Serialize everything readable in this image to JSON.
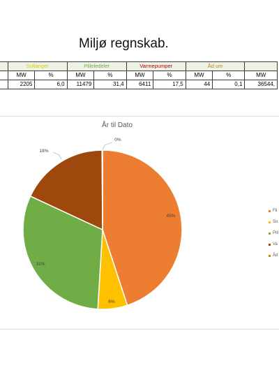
{
  "page": {
    "title": "Miljø regnskab."
  },
  "summary_table": {
    "groups": [
      {
        "label": "",
        "color": "#000000"
      },
      {
        "label": "Solfanger",
        "color": "#e0d000"
      },
      {
        "label": "Pilleledeler",
        "color": "#70ad47"
      },
      {
        "label": "Varmepumper",
        "color": "#c00000"
      },
      {
        "label": "Åd um",
        "color": "#bf8f00"
      },
      {
        "label": "",
        "color": "#000000"
      }
    ],
    "headers": [
      "",
      "MW",
      "%",
      "MW",
      "%",
      "MW",
      "%",
      "MW",
      "%",
      "MW"
    ],
    "values": [
      "",
      "2205",
      "6,0",
      "11479",
      "31,4",
      "6411",
      "17,5",
      "44",
      "0,1",
      "36544,"
    ]
  },
  "chart_data": {
    "type": "pie",
    "title": "År til Dato",
    "slices": [
      {
        "name": "Fli",
        "value": 45,
        "label": "45%",
        "color": "#ed7d31"
      },
      {
        "name": "So",
        "value": 6,
        "label": "6%",
        "color": "#ffc000"
      },
      {
        "name": "Pill",
        "value": 31,
        "label": "31%",
        "color": "#70ad47"
      },
      {
        "name": "Va",
        "value": 18,
        "label": "18%",
        "color": "#9e480e"
      },
      {
        "name": "Åd",
        "value": 0.1,
        "label": "0%",
        "color": "#bf8f00"
      }
    ],
    "legend_position": "right"
  }
}
